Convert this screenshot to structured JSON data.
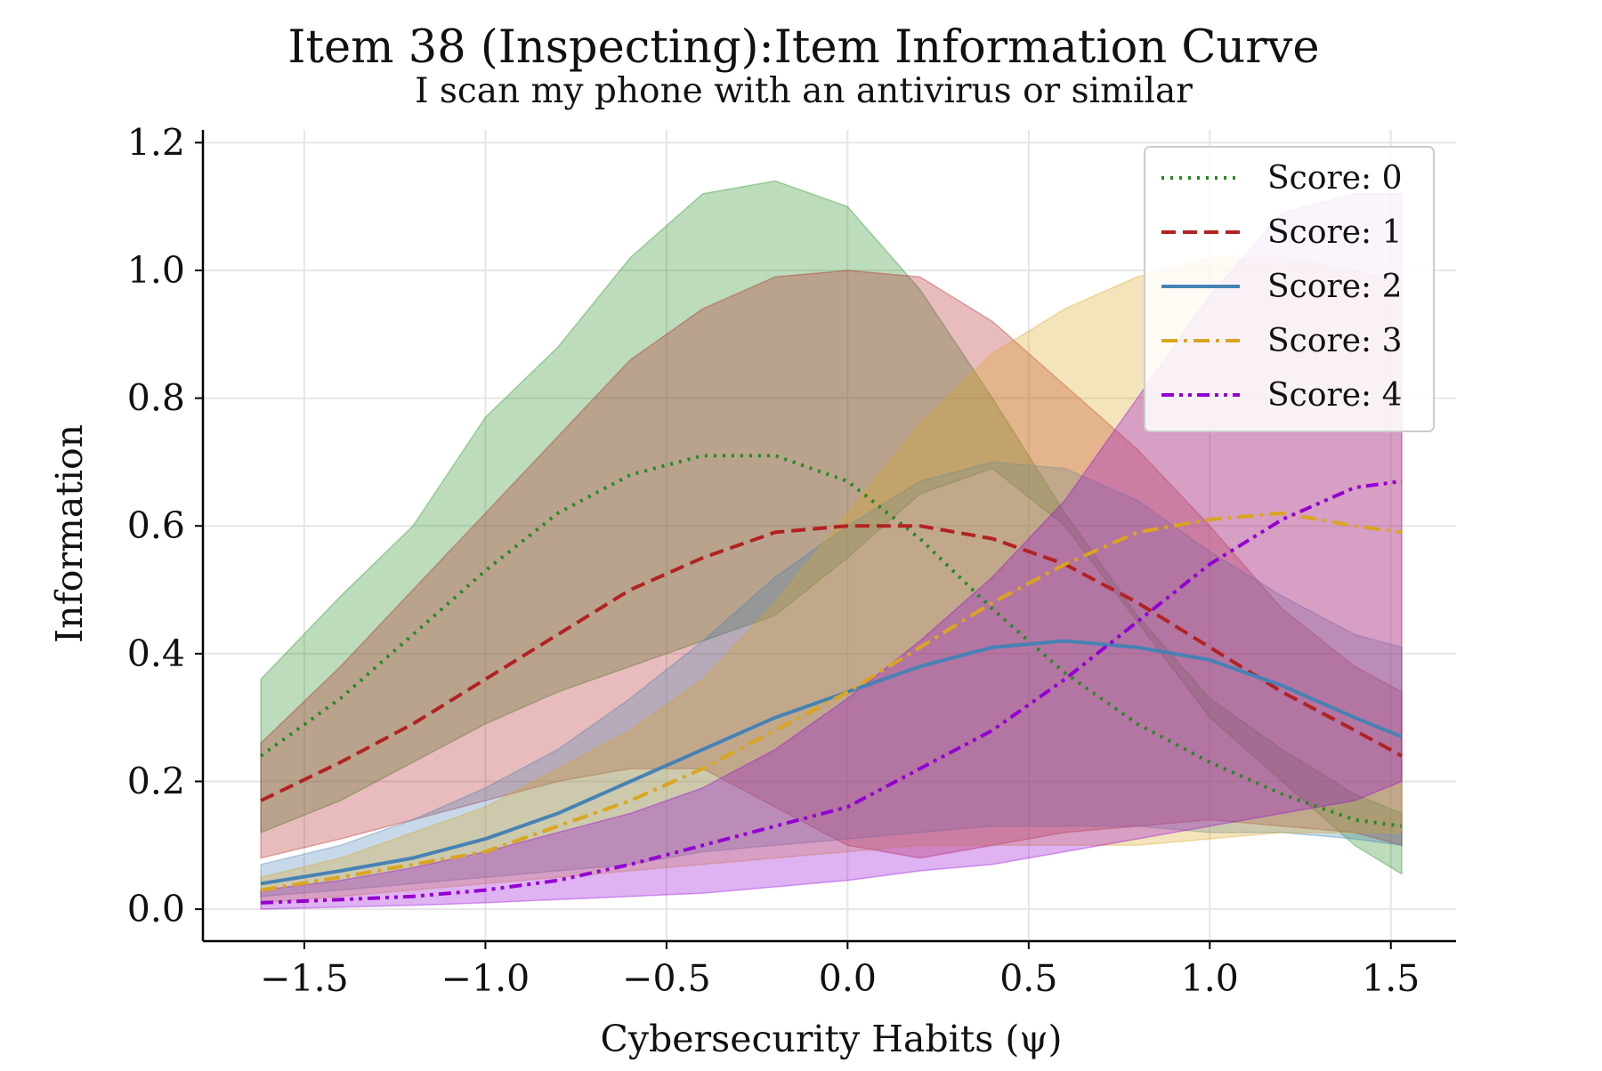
{
  "chart_data": {
    "type": "line",
    "title": "Item 38 (Inspecting):Item Information Curve",
    "subtitle": "I scan my phone with an antivirus or similar",
    "xlabel": "Cybersecurity Habits (ψ)",
    "ylabel": "Information",
    "xlim": [
      -1.78,
      1.68
    ],
    "ylim": [
      -0.05,
      1.22
    ],
    "xticks": [
      -1.5,
      -1.0,
      -0.5,
      0.0,
      0.5,
      1.0,
      1.5
    ],
    "xtick_labels": [
      "−1.5",
      "−1.0",
      "−0.5",
      "0.0",
      "0.5",
      "1.0",
      "1.5"
    ],
    "yticks": [
      0.0,
      0.2,
      0.4,
      0.6,
      0.8,
      1.0,
      1.2
    ],
    "ytick_labels": [
      "0.0",
      "0.2",
      "0.4",
      "0.6",
      "0.8",
      "1.0",
      "1.2"
    ],
    "grid": true,
    "legend_position": "top-right",
    "x": [
      -1.62,
      -1.4,
      -1.2,
      -1.0,
      -0.8,
      -0.6,
      -0.4,
      -0.2,
      0.0,
      0.2,
      0.4,
      0.6,
      0.8,
      1.0,
      1.2,
      1.4,
      1.53
    ],
    "series": [
      {
        "name": "Score: 0",
        "color": "#228b22",
        "dash": "dotted",
        "values": [
          0.24,
          0.33,
          0.43,
          0.53,
          0.62,
          0.68,
          0.71,
          0.71,
          0.67,
          0.58,
          0.47,
          0.37,
          0.29,
          0.23,
          0.18,
          0.14,
          0.13
        ],
        "lower": [
          0.12,
          0.17,
          0.23,
          0.29,
          0.34,
          0.38,
          0.42,
          0.46,
          0.55,
          0.65,
          0.69,
          0.6,
          0.45,
          0.3,
          0.2,
          0.1,
          0.055
        ],
        "upper": [
          0.36,
          0.49,
          0.6,
          0.77,
          0.88,
          1.02,
          1.12,
          1.14,
          1.1,
          0.97,
          0.8,
          0.62,
          0.46,
          0.33,
          0.25,
          0.18,
          0.15
        ]
      },
      {
        "name": "Score: 1",
        "color": "#b22222",
        "dash": "dashed",
        "values": [
          0.17,
          0.23,
          0.29,
          0.36,
          0.43,
          0.5,
          0.55,
          0.59,
          0.6,
          0.6,
          0.58,
          0.54,
          0.48,
          0.41,
          0.34,
          0.28,
          0.24
        ],
        "lower": [
          0.08,
          0.11,
          0.14,
          0.17,
          0.2,
          0.22,
          0.22,
          0.16,
          0.1,
          0.08,
          0.1,
          0.12,
          0.13,
          0.14,
          0.13,
          0.12,
          0.1
        ],
        "upper": [
          0.26,
          0.38,
          0.5,
          0.62,
          0.74,
          0.86,
          0.94,
          0.99,
          1.0,
          0.99,
          0.92,
          0.82,
          0.72,
          0.6,
          0.47,
          0.38,
          0.34
        ]
      },
      {
        "name": "Score: 2",
        "color": "#4682b4",
        "dash": "solid",
        "values": [
          0.04,
          0.06,
          0.08,
          0.11,
          0.15,
          0.2,
          0.25,
          0.3,
          0.34,
          0.38,
          0.41,
          0.42,
          0.41,
          0.39,
          0.35,
          0.3,
          0.27
        ],
        "lower": [
          0.02,
          0.03,
          0.04,
          0.05,
          0.06,
          0.07,
          0.09,
          0.1,
          0.11,
          0.12,
          0.13,
          0.13,
          0.13,
          0.12,
          0.12,
          0.11,
          0.1
        ],
        "upper": [
          0.07,
          0.1,
          0.14,
          0.19,
          0.25,
          0.33,
          0.42,
          0.52,
          0.6,
          0.67,
          0.7,
          0.69,
          0.64,
          0.56,
          0.49,
          0.43,
          0.41
        ]
      },
      {
        "name": "Score: 3",
        "color": "#daa520",
        "dash": "dashdot",
        "values": [
          0.03,
          0.05,
          0.07,
          0.09,
          0.13,
          0.17,
          0.22,
          0.28,
          0.34,
          0.41,
          0.48,
          0.54,
          0.59,
          0.61,
          0.62,
          0.6,
          0.59
        ],
        "lower": [
          0.01,
          0.02,
          0.03,
          0.04,
          0.05,
          0.06,
          0.07,
          0.08,
          0.09,
          0.1,
          0.1,
          0.1,
          0.1,
          0.11,
          0.12,
          0.12,
          0.12
        ],
        "upper": [
          0.05,
          0.08,
          0.12,
          0.16,
          0.22,
          0.28,
          0.36,
          0.48,
          0.62,
          0.76,
          0.87,
          0.94,
          0.99,
          1.02,
          1.02,
          1.0,
          0.98
        ]
      },
      {
        "name": "Score: 4",
        "color": "#9400d3",
        "dash": "dashdotdot",
        "values": [
          0.01,
          0.015,
          0.02,
          0.03,
          0.045,
          0.07,
          0.1,
          0.13,
          0.16,
          0.22,
          0.28,
          0.36,
          0.45,
          0.54,
          0.61,
          0.66,
          0.67
        ],
        "lower": [
          0.0,
          0.003,
          0.006,
          0.01,
          0.015,
          0.02,
          0.025,
          0.035,
          0.045,
          0.06,
          0.07,
          0.09,
          0.11,
          0.13,
          0.15,
          0.17,
          0.2
        ],
        "upper": [
          0.03,
          0.045,
          0.065,
          0.09,
          0.12,
          0.15,
          0.19,
          0.25,
          0.33,
          0.42,
          0.52,
          0.64,
          0.8,
          0.96,
          1.09,
          1.12,
          1.12
        ]
      }
    ]
  }
}
